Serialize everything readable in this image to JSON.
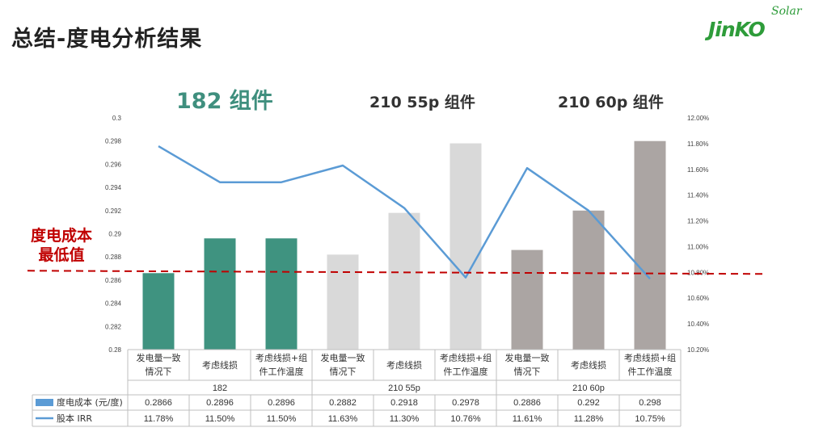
{
  "page": {
    "title": "总结-度电分析结果",
    "logo_main": "JinKO",
    "logo_sub": "Solar"
  },
  "annotations": {
    "group_labels": [
      "182 组件",
      "210 55p 组件",
      "210 60p 组件"
    ],
    "min_label_line1": "度电成本",
    "min_label_line2": "最低值",
    "min_line_color": "#c00000"
  },
  "chart_data": {
    "type": "bar",
    "categories": [
      [
        "发电量一致",
        "情况下"
      ],
      [
        "考虑线损"
      ],
      [
        "考虑线损+组",
        "件工作温度"
      ],
      [
        "发电量一致",
        "情况下"
      ],
      [
        "考虑线损"
      ],
      [
        "考虑线损+组",
        "件工作温度"
      ],
      [
        "发电量一致",
        "情况下"
      ],
      [
        "考虑线损"
      ],
      [
        "考虑线损+组",
        "件工作温度"
      ]
    ],
    "groups": [
      "182",
      "210 55p",
      "210 60p"
    ],
    "series": [
      {
        "name": "度电成本 (元/度)",
        "type": "bar",
        "axis": "left",
        "values": [
          0.2866,
          0.2896,
          0.2896,
          0.2882,
          0.2918,
          0.2978,
          0.2886,
          0.292,
          0.298
        ],
        "display": [
          "0.2866",
          "0.2896",
          "0.2896",
          "0.2882",
          "0.2918",
          "0.2978",
          "0.2886",
          "0.292",
          "0.298"
        ],
        "colors": [
          "#3f9380",
          "#3f9380",
          "#3f9380",
          "#d9d9d9",
          "#d9d9d9",
          "#d9d9d9",
          "#aba5a3",
          "#aba5a3",
          "#aba5a3"
        ],
        "legend_color": "#5b9bd5"
      },
      {
        "name": "股本 IRR",
        "type": "line",
        "axis": "right",
        "values": [
          11.78,
          11.5,
          11.5,
          11.63,
          11.3,
          10.76,
          11.61,
          11.28,
          10.75
        ],
        "display": [
          "11.78%",
          "11.50%",
          "11.50%",
          "11.63%",
          "11.30%",
          "10.76%",
          "11.61%",
          "11.28%",
          "10.75%"
        ],
        "color": "#5b9bd5"
      }
    ],
    "y_left": {
      "min": 0.28,
      "max": 0.3,
      "ticks": [
        "0.28",
        "0.282",
        "0.284",
        "0.286",
        "0.288",
        "0.29",
        "0.292",
        "0.294",
        "0.296",
        "0.298",
        "0.3"
      ]
    },
    "y_right": {
      "min": 10.2,
      "max": 12.0,
      "ticks": [
        "10.20%",
        "10.40%",
        "10.60%",
        "10.80%",
        "11.00%",
        "11.20%",
        "11.40%",
        "11.60%",
        "11.80%",
        "12.00%"
      ]
    },
    "reference_line": {
      "axis": "left",
      "value": 0.2866,
      "style": "dashed"
    },
    "grid": false
  }
}
